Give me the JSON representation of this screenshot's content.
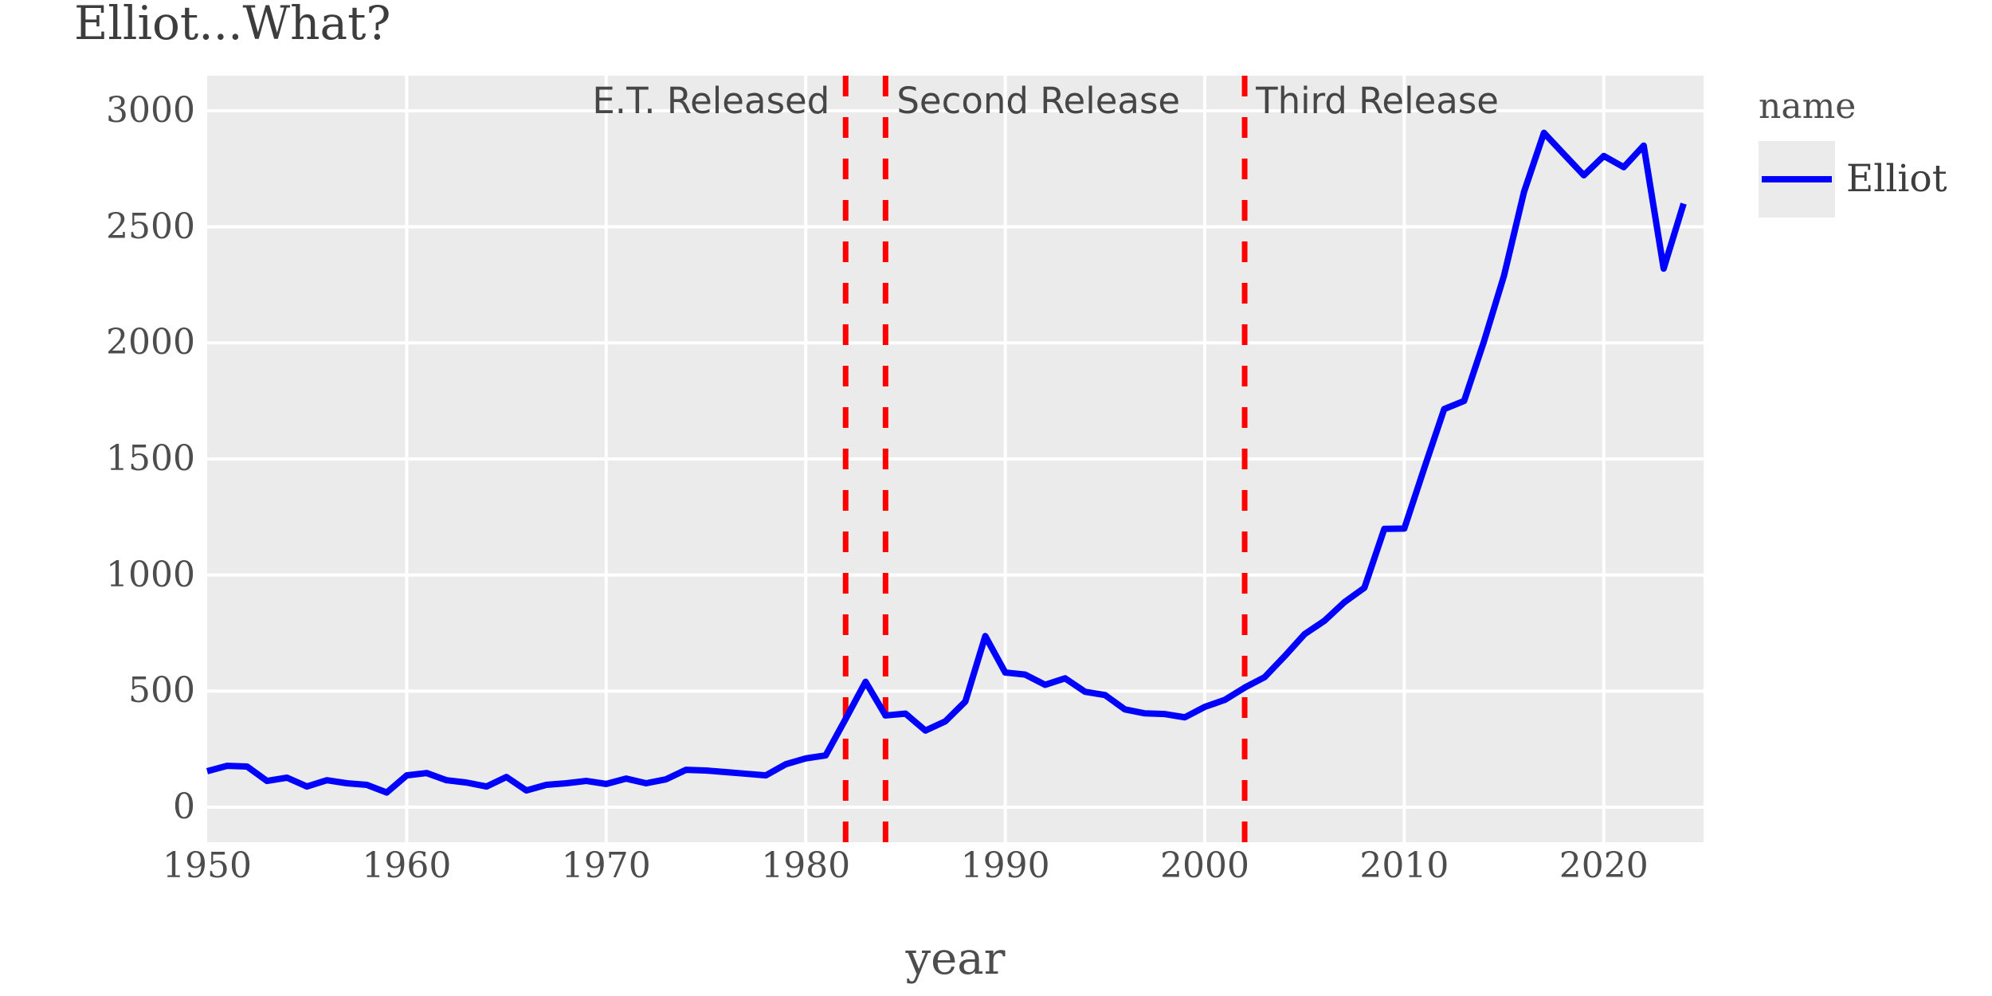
{
  "title": "Elliot...What?",
  "x_axis": {
    "label": "year",
    "ticks": [
      1950,
      1960,
      1970,
      1980,
      1990,
      2000,
      2010,
      2020
    ]
  },
  "y_axis": {
    "ticks": [
      0,
      500,
      1000,
      1500,
      2000,
      2500,
      3000
    ]
  },
  "legend": {
    "title": "name",
    "items": [
      {
        "label": "Elliot",
        "color": "#0000ff"
      }
    ]
  },
  "annotations": [
    {
      "text": "E.T. Released",
      "year": 1982,
      "align": "right"
    },
    {
      "text": "Second Release",
      "year": 1984,
      "align": "left"
    },
    {
      "text": "Third Release",
      "year": 2002,
      "align": "left"
    }
  ],
  "colors": {
    "panel_bg": "#ebebeb",
    "grid": "#ffffff",
    "series_line": "#0000ff",
    "event_line": "#ff0000",
    "title_text": "#3d3d3d",
    "axis_text": "#4d4d4d",
    "annotation_text": "#464646",
    "legend_text": "#3d3d3d"
  },
  "chart_data": {
    "type": "line",
    "title": "Elliot...What?",
    "xlabel": "year",
    "ylabel": "",
    "xlim": [
      1950,
      2025
    ],
    "ylim": [
      0,
      3000
    ],
    "grid": true,
    "legend_position": "right",
    "x": [
      1950,
      1951,
      1952,
      1953,
      1954,
      1955,
      1956,
      1957,
      1958,
      1959,
      1960,
      1961,
      1962,
      1963,
      1964,
      1965,
      1966,
      1967,
      1968,
      1969,
      1970,
      1971,
      1972,
      1973,
      1974,
      1975,
      1976,
      1977,
      1978,
      1979,
      1980,
      1981,
      1982,
      1983,
      1984,
      1985,
      1986,
      1987,
      1988,
      1989,
      1990,
      1991,
      1992,
      1993,
      1994,
      1995,
      1996,
      1997,
      1998,
      1999,
      2000,
      2001,
      2002,
      2003,
      2004,
      2005,
      2006,
      2007,
      2008,
      2009,
      2010,
      2011,
      2012,
      2013,
      2014,
      2015,
      2016,
      2017,
      2018,
      2019,
      2020,
      2021,
      2022,
      2023,
      2024
    ],
    "series": [
      {
        "name": "Elliot",
        "color": "#0000ff",
        "values": [
          155,
          178,
          175,
          113,
          127,
          89,
          116,
          103,
          96,
          63,
          137,
          147,
          116,
          106,
          89,
          130,
          72,
          96,
          103,
          113,
          100,
          123,
          103,
          120,
          161,
          158,
          151,
          144,
          137,
          185,
          210,
          223,
          380,
          540,
          395,
          403,
          330,
          370,
          455,
          737,
          580,
          571,
          527,
          555,
          497,
          483,
          421,
          404,
          401,
          387,
          432,
          462,
          515,
          560,
          650,
          745,
          803,
          883,
          945,
          1199,
          1200,
          1460,
          1715,
          1750,
          2008,
          2290,
          2650,
          2905,
          2813,
          2722,
          2805,
          2757,
          2850,
          2320,
          2600
        ]
      }
    ],
    "vlines": [
      {
        "x": 1982,
        "label": "E.T. Released",
        "style": "dashed",
        "color": "#ff0000"
      },
      {
        "x": 1984,
        "label": "Second Release",
        "style": "dashed",
        "color": "#ff0000"
      },
      {
        "x": 2002,
        "label": "Third Release",
        "style": "dashed",
        "color": "#ff0000"
      }
    ]
  }
}
